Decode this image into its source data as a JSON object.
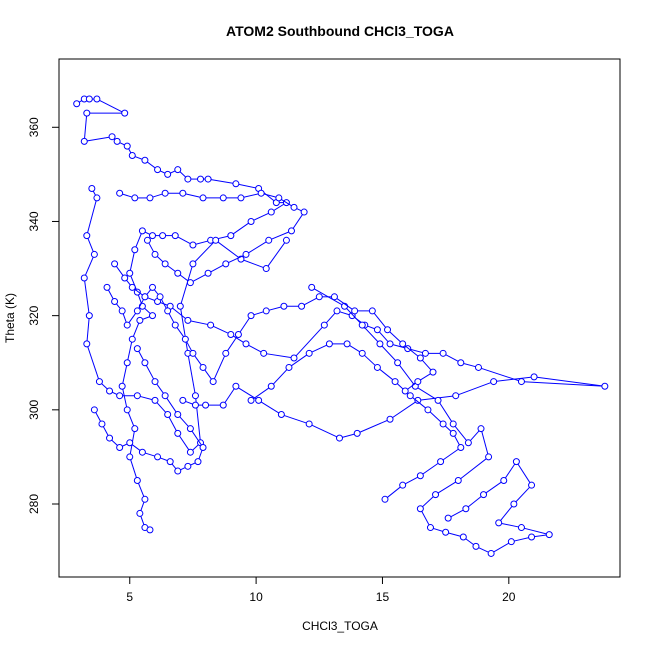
{
  "chart_data": {
    "type": "scatter",
    "title": "ATOM2 Southbound CHCl3_TOGA",
    "xlabel": "CHCl3_TOGA",
    "ylabel": "Theta (K)",
    "xlim": [
      2.2,
      24.4
    ],
    "ylim": [
      264.5,
      374.5
    ],
    "xticks": [
      5,
      10,
      15,
      20
    ],
    "yticks": [
      280,
      300,
      320,
      340,
      360
    ],
    "grid": false,
    "color": "#0000ff",
    "marker": "open-circle",
    "connected": true,
    "series": [
      {
        "values": [
          [
            2.9,
            365
          ],
          [
            3.2,
            366
          ],
          [
            3.4,
            366
          ],
          [
            3.7,
            366
          ],
          [
            4.8,
            363
          ],
          [
            3.3,
            363
          ],
          [
            3.2,
            357
          ],
          [
            4.3,
            358
          ],
          [
            4.5,
            357
          ],
          [
            4.9,
            356
          ],
          [
            5.1,
            354
          ],
          [
            5.6,
            353
          ],
          [
            6.1,
            351
          ],
          [
            6.5,
            350
          ],
          [
            6.9,
            351
          ],
          [
            7.3,
            349
          ],
          [
            7.8,
            349
          ],
          [
            8.1,
            349
          ],
          [
            9.2,
            348
          ],
          [
            10.1,
            347
          ],
          [
            10.8,
            344
          ],
          [
            11.2,
            344
          ],
          [
            10.6,
            342
          ],
          [
            9.8,
            340
          ],
          [
            9.0,
            337
          ],
          [
            8.2,
            336
          ],
          [
            7.5,
            335
          ],
          [
            6.8,
            337
          ],
          [
            6.3,
            337
          ],
          [
            5.9,
            337
          ],
          [
            5.5,
            338
          ],
          [
            5.2,
            334
          ],
          [
            5.0,
            329
          ],
          [
            5.3,
            325
          ],
          [
            5.5,
            322
          ],
          [
            5.9,
            320
          ],
          [
            5.4,
            319
          ],
          [
            5.1,
            315
          ],
          [
            4.9,
            310
          ],
          [
            4.7,
            305
          ],
          [
            4.9,
            300
          ],
          [
            5.2,
            296
          ],
          [
            5.0,
            290
          ],
          [
            5.3,
            285
          ],
          [
            5.6,
            281
          ],
          [
            5.4,
            278
          ],
          [
            5.6,
            275
          ],
          [
            5.8,
            274.5
          ]
        ]
      },
      {
        "values": [
          [
            3.5,
            347
          ],
          [
            3.7,
            345
          ],
          [
            3.3,
            337
          ],
          [
            3.6,
            333
          ],
          [
            3.2,
            328
          ],
          [
            3.4,
            320
          ],
          [
            3.3,
            314
          ],
          [
            3.8,
            306
          ],
          [
            4.2,
            304
          ],
          [
            4.6,
            303
          ],
          [
            5.3,
            303
          ],
          [
            6.0,
            302
          ],
          [
            6.5,
            299
          ],
          [
            6.9,
            295
          ],
          [
            7.4,
            291
          ],
          [
            7.8,
            293
          ],
          [
            7.6,
            303
          ],
          [
            7.3,
            312
          ],
          [
            7.0,
            322
          ],
          [
            7.5,
            331
          ],
          [
            8.4,
            336
          ],
          [
            9.4,
            332
          ],
          [
            10.4,
            330
          ],
          [
            11.2,
            336
          ]
        ]
      },
      {
        "values": [
          [
            4.4,
            331
          ],
          [
            4.8,
            328
          ],
          [
            5.1,
            326
          ],
          [
            5.6,
            324
          ],
          [
            6.1,
            323
          ],
          [
            6.6,
            322
          ],
          [
            7.3,
            319
          ],
          [
            8.2,
            318
          ],
          [
            9.0,
            316
          ],
          [
            9.6,
            314
          ],
          [
            10.3,
            312
          ],
          [
            11.5,
            311
          ],
          [
            12.7,
            318
          ],
          [
            13.2,
            321
          ],
          [
            13.8,
            320
          ],
          [
            14.3,
            318
          ],
          [
            14.8,
            317
          ],
          [
            15.3,
            314
          ],
          [
            16.0,
            313
          ],
          [
            16.7,
            312
          ],
          [
            17.4,
            312
          ],
          [
            18.1,
            310
          ],
          [
            18.8,
            309
          ],
          [
            20.5,
            306
          ],
          [
            23.8,
            305
          ],
          [
            21.0,
            307
          ],
          [
            19.4,
            306
          ],
          [
            17.9,
            303
          ],
          [
            16.4,
            302
          ],
          [
            15.3,
            298
          ],
          [
            14.0,
            295
          ],
          [
            13.3,
            294
          ],
          [
            12.1,
            297
          ],
          [
            11.0,
            299
          ],
          [
            10.1,
            302
          ],
          [
            9.2,
            305
          ],
          [
            8.7,
            301
          ],
          [
            8.0,
            301
          ],
          [
            7.6,
            301
          ],
          [
            7.1,
            302
          ]
        ]
      },
      {
        "values": [
          [
            12.2,
            326
          ],
          [
            13.5,
            322
          ],
          [
            14.2,
            318
          ],
          [
            14.9,
            314
          ],
          [
            15.6,
            310
          ],
          [
            16.3,
            305
          ],
          [
            17.2,
            302
          ],
          [
            17.8,
            297
          ],
          [
            18.4,
            293
          ],
          [
            18.9,
            296
          ],
          [
            19.2,
            290
          ],
          [
            18.0,
            285
          ],
          [
            17.1,
            282
          ],
          [
            16.5,
            279
          ],
          [
            16.9,
            275
          ],
          [
            17.5,
            274
          ],
          [
            18.2,
            273
          ],
          [
            18.7,
            271
          ],
          [
            19.3,
            269.5
          ],
          [
            20.1,
            272
          ],
          [
            20.9,
            273
          ],
          [
            21.6,
            273.5
          ],
          [
            20.5,
            275
          ],
          [
            19.6,
            276
          ],
          [
            20.2,
            280
          ],
          [
            20.9,
            284
          ],
          [
            20.3,
            289
          ],
          [
            19.8,
            285
          ],
          [
            19.0,
            282
          ],
          [
            18.3,
            279
          ],
          [
            17.6,
            277
          ]
        ]
      },
      {
        "values": [
          [
            9.8,
            302
          ],
          [
            10.6,
            305
          ],
          [
            11.3,
            309
          ],
          [
            12.1,
            312
          ],
          [
            12.9,
            314
          ],
          [
            13.6,
            314
          ],
          [
            14.2,
            312
          ],
          [
            14.8,
            309
          ],
          [
            15.5,
            306
          ],
          [
            16.1,
            303
          ],
          [
            16.8,
            300
          ],
          [
            17.4,
            297
          ],
          [
            17.8,
            295
          ],
          [
            18.1,
            292
          ],
          [
            17.3,
            289
          ],
          [
            16.5,
            286
          ],
          [
            15.8,
            284
          ],
          [
            15.1,
            281
          ]
        ]
      },
      {
        "values": [
          [
            4.6,
            346
          ],
          [
            5.2,
            345
          ],
          [
            5.8,
            345
          ],
          [
            6.4,
            346
          ],
          [
            7.1,
            346
          ],
          [
            7.9,
            345
          ],
          [
            8.7,
            345
          ],
          [
            9.4,
            345
          ],
          [
            10.2,
            346
          ],
          [
            10.9,
            345
          ],
          [
            11.5,
            343
          ],
          [
            11.9,
            342
          ],
          [
            11.4,
            338
          ],
          [
            10.5,
            336
          ],
          [
            9.6,
            333
          ],
          [
            8.8,
            331
          ],
          [
            8.1,
            329
          ],
          [
            7.4,
            327
          ],
          [
            6.9,
            329
          ],
          [
            6.4,
            331
          ],
          [
            6.0,
            333
          ],
          [
            5.7,
            336
          ]
        ]
      },
      {
        "values": [
          [
            4.1,
            326
          ],
          [
            4.4,
            323
          ],
          [
            4.7,
            321
          ],
          [
            4.9,
            318
          ],
          [
            5.3,
            321
          ],
          [
            5.6,
            324
          ],
          [
            5.9,
            326
          ],
          [
            6.2,
            324
          ],
          [
            6.5,
            321
          ],
          [
            6.8,
            318
          ],
          [
            7.2,
            315
          ],
          [
            7.5,
            312
          ],
          [
            7.9,
            309
          ],
          [
            8.3,
            306
          ],
          [
            8.8,
            312
          ],
          [
            9.3,
            316
          ],
          [
            9.8,
            320
          ],
          [
            10.4,
            321
          ],
          [
            11.1,
            322
          ],
          [
            11.8,
            322
          ],
          [
            12.5,
            324
          ],
          [
            13.1,
            324
          ],
          [
            13.9,
            321
          ],
          [
            14.6,
            321
          ],
          [
            15.2,
            317
          ],
          [
            15.8,
            314
          ],
          [
            16.5,
            311
          ],
          [
            17.0,
            308
          ],
          [
            16.4,
            306
          ],
          [
            15.9,
            304
          ]
        ]
      },
      {
        "values": [
          [
            3.6,
            300
          ],
          [
            3.9,
            297
          ],
          [
            4.2,
            294
          ],
          [
            4.6,
            292
          ],
          [
            5.0,
            293
          ],
          [
            5.5,
            291
          ],
          [
            6.1,
            290
          ],
          [
            6.6,
            289
          ],
          [
            6.9,
            287
          ],
          [
            7.3,
            288
          ],
          [
            7.7,
            289
          ],
          [
            7.9,
            292
          ],
          [
            7.4,
            296
          ],
          [
            6.9,
            299
          ],
          [
            6.4,
            303
          ],
          [
            6.0,
            306
          ],
          [
            5.6,
            310
          ],
          [
            5.3,
            313
          ]
        ]
      }
    ]
  }
}
